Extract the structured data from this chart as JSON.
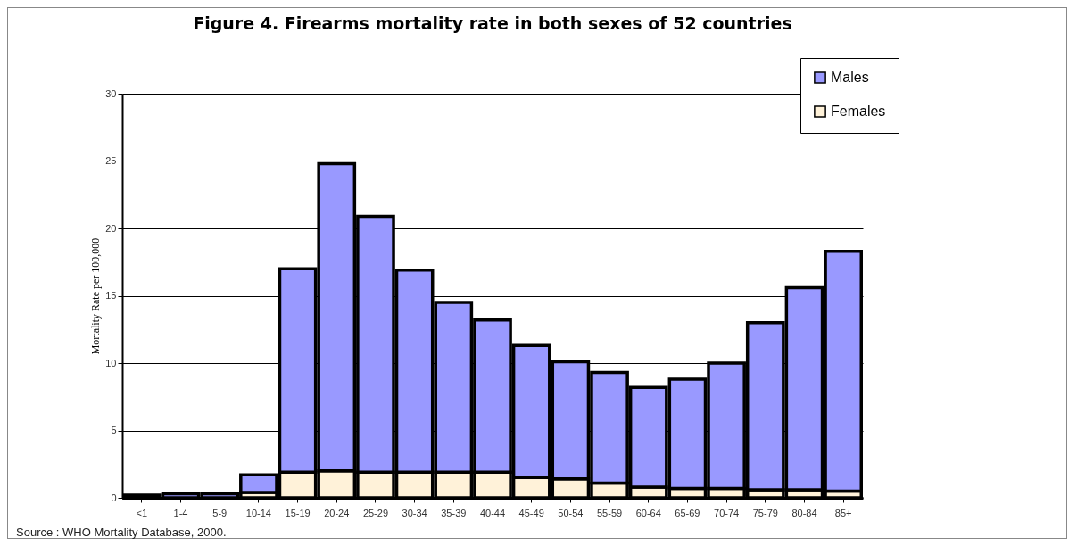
{
  "chart_data": {
    "type": "bar",
    "title": "Figure 4. Firearms mortality rate in both sexes of 52 countries",
    "ylabel": "Mortality Rate per 100,000",
    "annotations": [
      "Source : WHO Mortality Database, 2000."
    ],
    "categories": [
      "<1",
      "1-4",
      "5-9",
      "10-14",
      "15-19",
      "20-24",
      "25-29",
      "30-34",
      "35-39",
      "40-44",
      "45-49",
      "50-54",
      "55-59",
      "60-64",
      "65-69",
      "70-74",
      "75-79",
      "80-84",
      "85+"
    ],
    "series": [
      {
        "name": "Females",
        "color": "#fff2d9",
        "values": [
          null,
          null,
          null,
          0.4,
          1.9,
          2.0,
          1.9,
          1.9,
          1.9,
          1.9,
          1.5,
          1.4,
          1.1,
          0.8,
          0.7,
          0.7,
          0.6,
          0.6,
          0.5
        ]
      },
      {
        "name": "Males",
        "color": "#9999ff",
        "values": [
          0.2,
          0.3,
          0.3,
          1.3,
          15.1,
          22.8,
          19.0,
          15.0,
          12.6,
          11.3,
          9.8,
          8.7,
          8.2,
          7.4,
          8.1,
          9.3,
          12.4,
          15.0,
          17.8
        ]
      }
    ],
    "stacked": true,
    "ylim": [
      0,
      30
    ],
    "yticks": [
      0,
      5,
      10,
      15,
      20,
      25,
      30
    ],
    "grid": "y",
    "legend": "top right"
  }
}
